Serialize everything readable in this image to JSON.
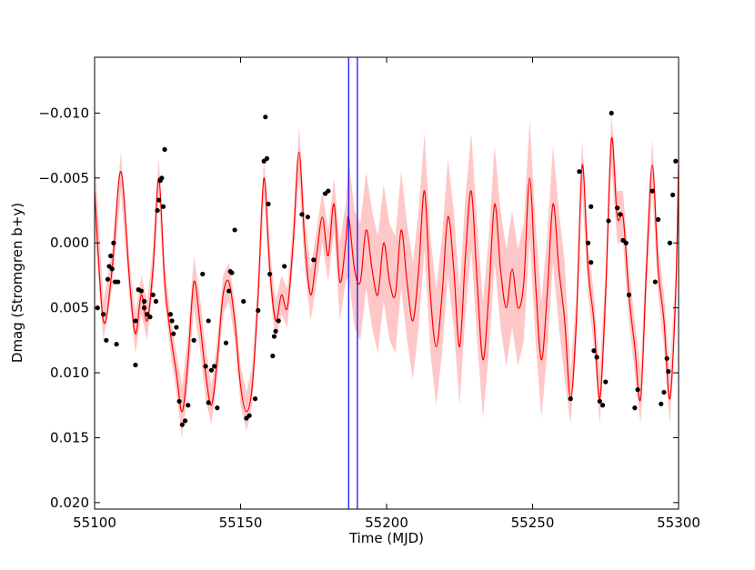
{
  "chart_data": {
    "type": "scatter",
    "xlabel": "Time (MJD)",
    "ylabel": "Dmag (Stromgren b+y)",
    "xlim": [
      55100,
      55300
    ],
    "xticks": [
      55100,
      55150,
      55200,
      55250,
      55300
    ],
    "ylim": [
      0.0205,
      -0.0143
    ],
    "yticks": [
      {
        "value": -0.01,
        "label": "−0.010"
      },
      {
        "value": -0.005,
        "label": "−0.005"
      },
      {
        "value": 0,
        "label": "0.000"
      },
      {
        "value": 0.005,
        "label": "0.005"
      },
      {
        "value": 0.01,
        "label": "0.010"
      },
      {
        "value": 0.015,
        "label": "0.015"
      },
      {
        "value": 0.02,
        "label": "0.020"
      }
    ],
    "points": {
      "color": "#000000",
      "x": [
        55101,
        55103,
        55104,
        55104.5,
        55105,
        55105.5,
        55106,
        55106.5,
        55107,
        55107.5,
        55108,
        55114,
        55114,
        55115,
        55116,
        55117,
        55117,
        55118,
        55119,
        55120,
        55121,
        55121.5,
        55122,
        55122.5,
        55123,
        55123.5,
        55124,
        55126,
        55126.5,
        55127,
        55128,
        55129,
        55130,
        55131,
        55132,
        55134,
        55137,
        55138,
        55139,
        55139,
        55140,
        55141,
        55142,
        55145,
        55146,
        55146.5,
        55147,
        55148,
        55151,
        55152,
        55153,
        55155,
        55156,
        55158,
        55158.5,
        55159,
        55159.5,
        55160,
        55161,
        55161.5,
        55162,
        55163,
        55165,
        55171,
        55173,
        55175,
        55179,
        55180,
        55263,
        55266,
        55269,
        55270,
        55270,
        55271,
        55272,
        55273,
        55274,
        55275,
        55276,
        55277,
        55279,
        55280,
        55281,
        55282,
        55283,
        55285,
        55286,
        55291,
        55292,
        55293,
        55294,
        55295,
        55296,
        55296.5,
        55297,
        55298,
        55299
      ],
      "y": [
        0.005,
        0.0055,
        0.0075,
        0.0028,
        0.0018,
        0.001,
        0.002,
        0.0,
        0.003,
        0.0078,
        0.003,
        0.0094,
        0.006,
        0.0036,
        0.0037,
        0.0045,
        0.005,
        0.0055,
        0.0057,
        0.004,
        0.0045,
        -0.0025,
        -0.0033,
        -0.0048,
        -0.005,
        -0.0028,
        -0.0072,
        0.0055,
        0.006,
        0.007,
        0.0065,
        0.0122,
        0.014,
        0.0137,
        0.0125,
        0.0075,
        0.0024,
        0.0095,
        0.006,
        0.0123,
        0.0098,
        0.0095,
        0.0127,
        0.0077,
        0.0037,
        0.0022,
        0.0023,
        -0.001,
        0.0045,
        0.0135,
        0.0133,
        0.012,
        0.0052,
        -0.0063,
        -0.0097,
        -0.0065,
        -0.003,
        0.0024,
        0.0087,
        0.0072,
        0.0068,
        0.006,
        0.0018,
        -0.0022,
        -0.002,
        0.0013,
        -0.0038,
        -0.004,
        0.012,
        -0.0055,
        0.0,
        -0.0028,
        0.0015,
        0.0083,
        0.0088,
        0.0122,
        0.0125,
        0.0107,
        -0.0017,
        -0.01,
        -0.0027,
        -0.0022,
        -0.0002,
        0.0,
        0.004,
        0.0127,
        0.0113,
        -0.004,
        0.003,
        -0.0018,
        0.0124,
        0.0115,
        0.0089,
        0.0099,
        0.0,
        -0.0037,
        -0.0063
      ]
    },
    "fit": {
      "color": "#ff0000",
      "band_color": "#ffc8c8",
      "x": [
        55100,
        55103,
        55106,
        55109,
        55112,
        55114,
        55116,
        55118,
        55120,
        55122,
        55124,
        55126,
        55128,
        55130,
        55132,
        55134,
        55136,
        55138,
        55140,
        55142,
        55144,
        55146,
        55148,
        55150,
        55152,
        55154,
        55156,
        55158,
        55160,
        55162,
        55164,
        55166,
        55168,
        55170,
        55172,
        55174,
        55176,
        55178,
        55180,
        55182,
        55184,
        55186,
        55187,
        55189,
        55191,
        55193,
        55195,
        55197,
        55199,
        55201,
        55203,
        55205,
        55207,
        55209,
        55211,
        55213,
        55215,
        55217,
        55219,
        55221,
        55223,
        55225,
        55227,
        55229,
        55231,
        55233,
        55235,
        55237,
        55239,
        55241,
        55243,
        55245,
        55247,
        55249,
        55251,
        55253,
        55255,
        55257,
        55259,
        55261,
        55263,
        55265,
        55267,
        55269,
        55271,
        55273,
        55275,
        55277,
        55279,
        55281,
        55283,
        55285,
        55287,
        55289,
        55291,
        55293,
        55295,
        55297,
        55299,
        55300
      ],
      "y": [
        -0.004,
        0.006,
        0.002,
        -0.0055,
        0.003,
        0.007,
        0.004,
        0.006,
        0.002,
        -0.005,
        0.003,
        0.007,
        0.01,
        0.013,
        0.009,
        0.003,
        0.006,
        0.01,
        0.0125,
        0.009,
        0.004,
        0.003,
        0.006,
        0.011,
        0.013,
        0.011,
        0.004,
        -0.005,
        0.002,
        0.006,
        0.004,
        0.005,
        0.0,
        -0.007,
        0.0,
        0.004,
        0.001,
        -0.002,
        0.001,
        -0.003,
        0.003,
        0.0,
        -0.002,
        0.002,
        0.003,
        -0.001,
        0.002,
        0.004,
        0.0,
        0.003,
        0.004,
        -0.001,
        0.003,
        0.006,
        0.002,
        -0.004,
        0.004,
        0.008,
        0.004,
        -0.002,
        0.002,
        0.008,
        0.001,
        -0.004,
        0.003,
        0.009,
        0.004,
        -0.003,
        0.002,
        0.005,
        0.002,
        0.005,
        0.003,
        -0.005,
        0.003,
        0.009,
        0.004,
        -0.003,
        0.002,
        0.006,
        0.012,
        0.006,
        -0.006,
        0.002,
        0.006,
        0.012,
        0.004,
        -0.008,
        -0.002,
        -0.002,
        0.004,
        0.008,
        0.012,
        0.002,
        -0.006,
        0.002,
        0.006,
        0.012,
        0.004,
        -0.006
      ],
      "error": [
        0.003,
        0.0015,
        0.0015,
        0.0015,
        0.0015,
        0.0015,
        0.0015,
        0.0015,
        0.0015,
        0.0015,
        0.0015,
        0.0015,
        0.0015,
        0.002,
        0.002,
        0.002,
        0.002,
        0.002,
        0.0015,
        0.0015,
        0.0015,
        0.0015,
        0.0015,
        0.0015,
        0.0015,
        0.0015,
        0.0015,
        0.0015,
        0.0015,
        0.0015,
        0.0015,
        0.0015,
        0.0015,
        0.002,
        0.002,
        0.002,
        0.002,
        0.002,
        0.002,
        0.002,
        0.003,
        0.003,
        0.0045,
        0.0045,
        0.0045,
        0.0045,
        0.0045,
        0.0045,
        0.0045,
        0.0045,
        0.0045,
        0.0045,
        0.0045,
        0.0045,
        0.0045,
        0.0045,
        0.0045,
        0.0045,
        0.0045,
        0.0045,
        0.0045,
        0.0045,
        0.0045,
        0.0045,
        0.0045,
        0.0045,
        0.0045,
        0.0045,
        0.0045,
        0.0045,
        0.0045,
        0.0045,
        0.0045,
        0.0045,
        0.0045,
        0.0045,
        0.0045,
        0.0045,
        0.0045,
        0.0045,
        0.002,
        0.002,
        0.002,
        0.002,
        0.002,
        0.002,
        0.002,
        0.002,
        0.002,
        0.002,
        0.002,
        0.002,
        0.002,
        0.002,
        0.002,
        0.002,
        0.002,
        0.002,
        0.002,
        0.003
      ]
    },
    "vlines": {
      "color": "#0000ff",
      "x": [
        55187,
        55190
      ]
    }
  }
}
